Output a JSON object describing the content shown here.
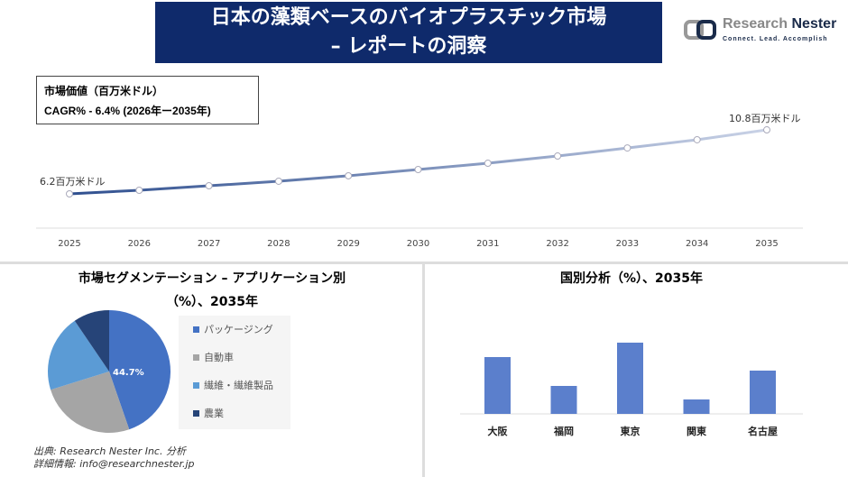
{
  "header": {
    "title_line1": "日本の藻類ベースのバイオプラスチック市場",
    "title_line2": "– レポートの洞察"
  },
  "logo": {
    "name_part1": "Research",
    "name_part2": "Nester",
    "tagline": "Connect. Lead. Accomplish"
  },
  "info": {
    "market_value": "市場価値（百万米ドル）",
    "cagr": "CAGR% - 6.4% (2026年ー2035年)"
  },
  "colors": {
    "title_bg": "#0f2a6b",
    "packaging": "#4472c4",
    "automotive": "#a5a5a5",
    "textiles": "#5b9bd5",
    "agriculture": "#264478",
    "bar": "#5b7fcc"
  },
  "chart_data": [
    {
      "type": "line",
      "x": [
        "2025",
        "2026",
        "2027",
        "2028",
        "2029",
        "2030",
        "2031",
        "2032",
        "2033",
        "2034",
        "2035"
      ],
      "values": [
        6.2,
        6.46,
        6.78,
        7.11,
        7.5,
        7.95,
        8.4,
        8.92,
        9.5,
        10.09,
        10.8
      ],
      "data_labels": {
        "first": "6.2百万米ドル",
        "last": "10.8百万米ドル"
      },
      "grid": false
    },
    {
      "type": "pie",
      "title": "市場セグメンテーション – アプリケーション別",
      "subtitle": "（%）、2035年",
      "categories": [
        "パッケージング",
        "自動車",
        "繊維・繊維製品",
        "農業"
      ],
      "values": [
        44.7,
        25.5,
        20.3,
        9.5
      ],
      "data_label": "44.7%",
      "legend": "right"
    },
    {
      "type": "bar",
      "title": "国別分析（%）、2035年",
      "categories": [
        "大阪",
        "福岡",
        "東京",
        "関東",
        "名古屋"
      ],
      "values": [
        63,
        31,
        79,
        16,
        48
      ],
      "grid": false
    }
  ],
  "source": {
    "line1": "出典: Research Nester Inc. 分析",
    "line2": "詳細情報: info@researchnester.jp"
  }
}
